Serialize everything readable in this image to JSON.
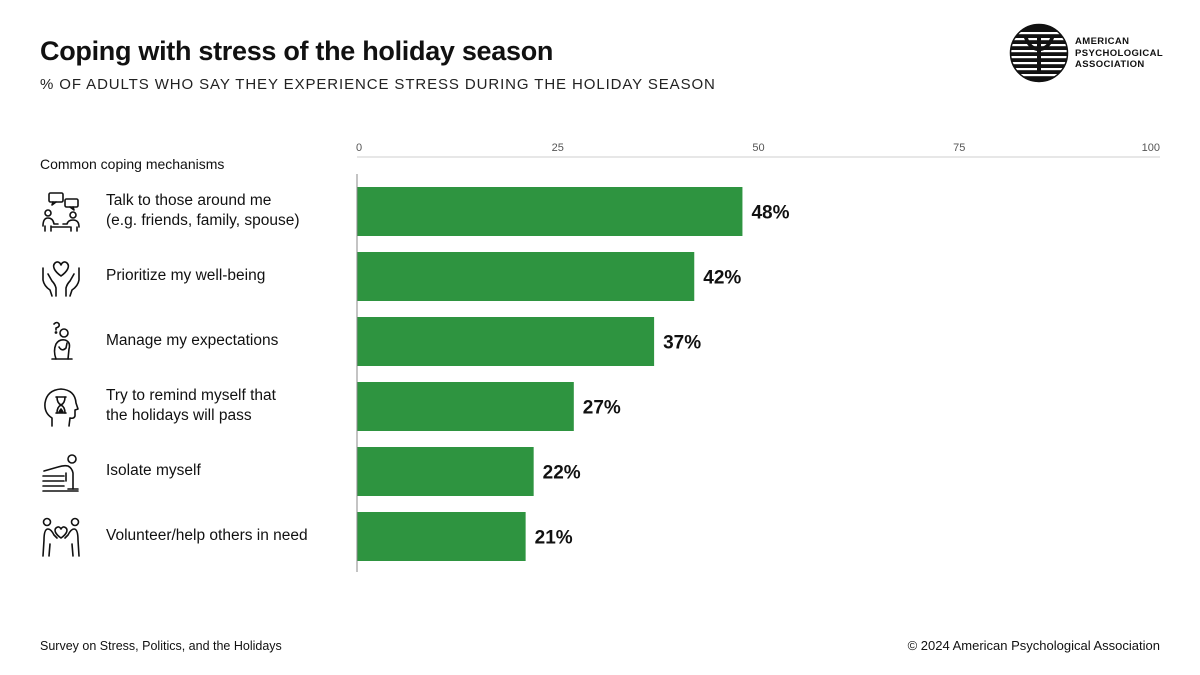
{
  "header": {
    "title": "Coping with stress of the holiday season",
    "subtitle": "% OF ADULTS WHO SAY THEY EXPERIENCE STRESS DURING THE HOLIDAY SEASON"
  },
  "logo": {
    "lines": [
      "AMERICAN",
      "PSYCHOLOGICAL",
      "ASSOCIATION"
    ]
  },
  "section_label": "Common coping mechanisms",
  "categories": [
    {
      "label": "Talk to those around me\n(e.g. friends, family, spouse)",
      "icon": "conversation-icon"
    },
    {
      "label": "Prioritize my well-being",
      "icon": "heart-hands-icon"
    },
    {
      "label": "Manage my expectations",
      "icon": "thinking-person-icon"
    },
    {
      "label": "Try to remind myself that\nthe holidays will pass",
      "icon": "head-hourglass-icon"
    },
    {
      "label": "Isolate myself",
      "icon": "person-in-bed-icon"
    },
    {
      "label": "Volunteer/help others in need",
      "icon": "helping-people-icon"
    }
  ],
  "chart_data": {
    "type": "bar",
    "orientation": "horizontal",
    "title": "Coping with stress of the holiday season",
    "categories": [
      "Talk to those around me (e.g. friends, family, spouse)",
      "Prioritize my well-being",
      "Manage my expectations",
      "Try to remind myself that the holidays will pass",
      "Isolate myself",
      "Volunteer/help others in need"
    ],
    "values": [
      48,
      42,
      37,
      27,
      22,
      21
    ],
    "value_labels": [
      "48%",
      "42%",
      "37%",
      "27%",
      "22%",
      "21%"
    ],
    "xlim": [
      0,
      100
    ],
    "ticks": [
      0,
      25,
      50,
      75,
      100
    ],
    "tick_labels": [
      "0",
      "25",
      "50",
      "75",
      "100"
    ],
    "xlabel": "",
    "ylabel": "",
    "bar_color": "#2e9440",
    "grid": false
  },
  "footer": {
    "source": "Survey on Stress, Politics, and the Holidays",
    "copyright": "© 2024 American Psychological Association"
  }
}
